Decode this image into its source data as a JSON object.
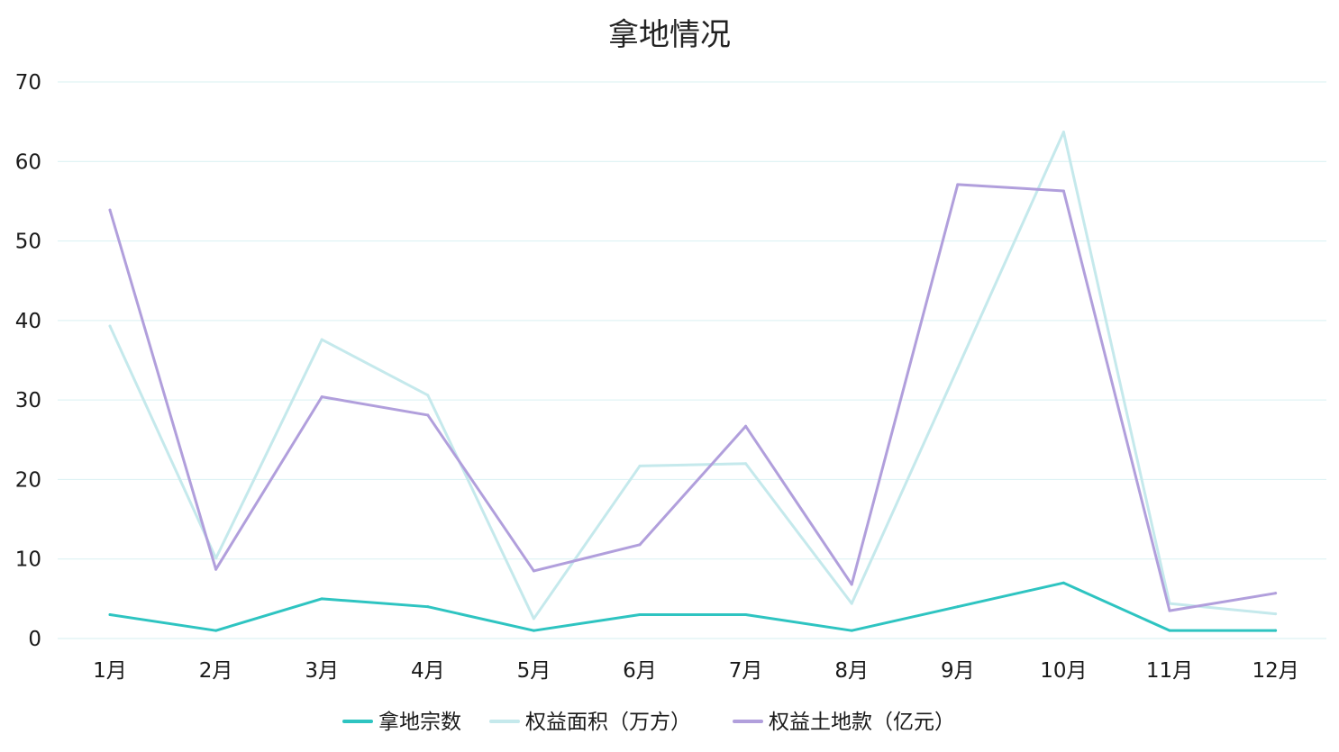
{
  "chart_data": {
    "type": "line",
    "title": "拿地情况",
    "xlabel": "",
    "ylabel": "",
    "categories": [
      "1月",
      "2月",
      "3月",
      "4月",
      "5月",
      "6月",
      "7月",
      "8月",
      "9月",
      "10月",
      "11月",
      "12月"
    ],
    "ylim": [
      0,
      70
    ],
    "yticks": [
      0,
      10,
      20,
      30,
      40,
      50,
      60,
      70
    ],
    "grid": true,
    "legend_position": "bottom",
    "series": [
      {
        "name": "拿地宗数",
        "color": "#2ec4c1",
        "values": [
          3,
          1,
          5,
          4,
          1,
          3,
          3,
          1,
          4,
          7,
          1,
          1
        ]
      },
      {
        "name": "权益面积（万方）",
        "color": "#c5e9ec",
        "values": [
          39.3,
          10.1,
          37.6,
          30.6,
          2.5,
          21.7,
          22.0,
          4.4,
          34.0,
          63.7,
          4.4,
          3.1
        ]
      },
      {
        "name": "权益土地款（亿元）",
        "color": "#b19fdc",
        "values": [
          53.9,
          8.7,
          30.4,
          28.1,
          8.5,
          11.8,
          26.7,
          6.8,
          57.1,
          56.3,
          3.5,
          5.7
        ]
      }
    ]
  }
}
